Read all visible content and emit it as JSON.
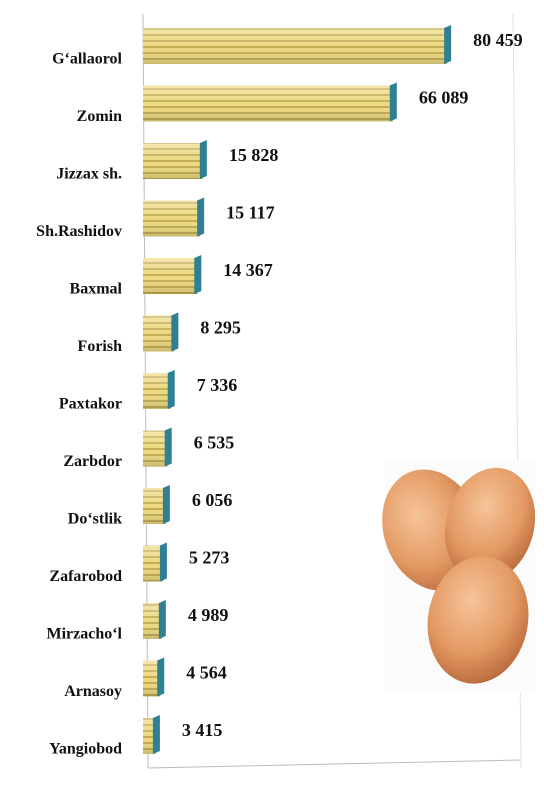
{
  "chart_data": {
    "type": "bar",
    "orientation": "horizontal",
    "categories": [
      "G‘allaorol",
      "Zomin",
      "Jizzax sh.",
      "Sh.Rashidov",
      "Baxmal",
      "Forish",
      "Paxtakor",
      "Zarbdor",
      "Do‘stlik",
      "Zafarobod",
      "Mirzacho‘l",
      "Arnasoy",
      "Yangiobod"
    ],
    "values": [
      80459,
      66089,
      15828,
      15117,
      14367,
      8295,
      7336,
      6535,
      6056,
      5273,
      4989,
      4564,
      3415
    ],
    "value_labels": [
      "80 459",
      "66 089",
      "15 828",
      "15 117",
      "14 367",
      "8 295",
      "7 336",
      "6 535",
      "6 056",
      "5 273",
      "4 989",
      "4 564",
      "3 415"
    ],
    "color": "#e3cf72",
    "xlim": [
      0,
      100000
    ]
  }
}
